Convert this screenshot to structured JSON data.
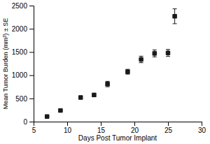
{
  "chart_data": {
    "type": "scatter",
    "x": [
      7,
      9,
      12,
      14,
      16,
      19,
      21,
      23,
      25,
      26
    ],
    "values": [
      110,
      240,
      520,
      575,
      810,
      1075,
      1340,
      1470,
      1480,
      2270
    ],
    "yerr": [
      12,
      18,
      28,
      32,
      58,
      52,
      70,
      75,
      75,
      160
    ],
    "xlim": [
      5,
      30
    ],
    "ylim": [
      0,
      2500
    ],
    "xticks": [
      5,
      10,
      15,
      20,
      25,
      30
    ],
    "yticks": [
      0,
      500,
      1000,
      1500,
      2000,
      2500
    ],
    "xlabel": "Days Post Tumor Implant",
    "ylabel": "Mean Tumor Burden (mm³) ± SE",
    "marker": "square",
    "color": "#1a1a1a"
  }
}
